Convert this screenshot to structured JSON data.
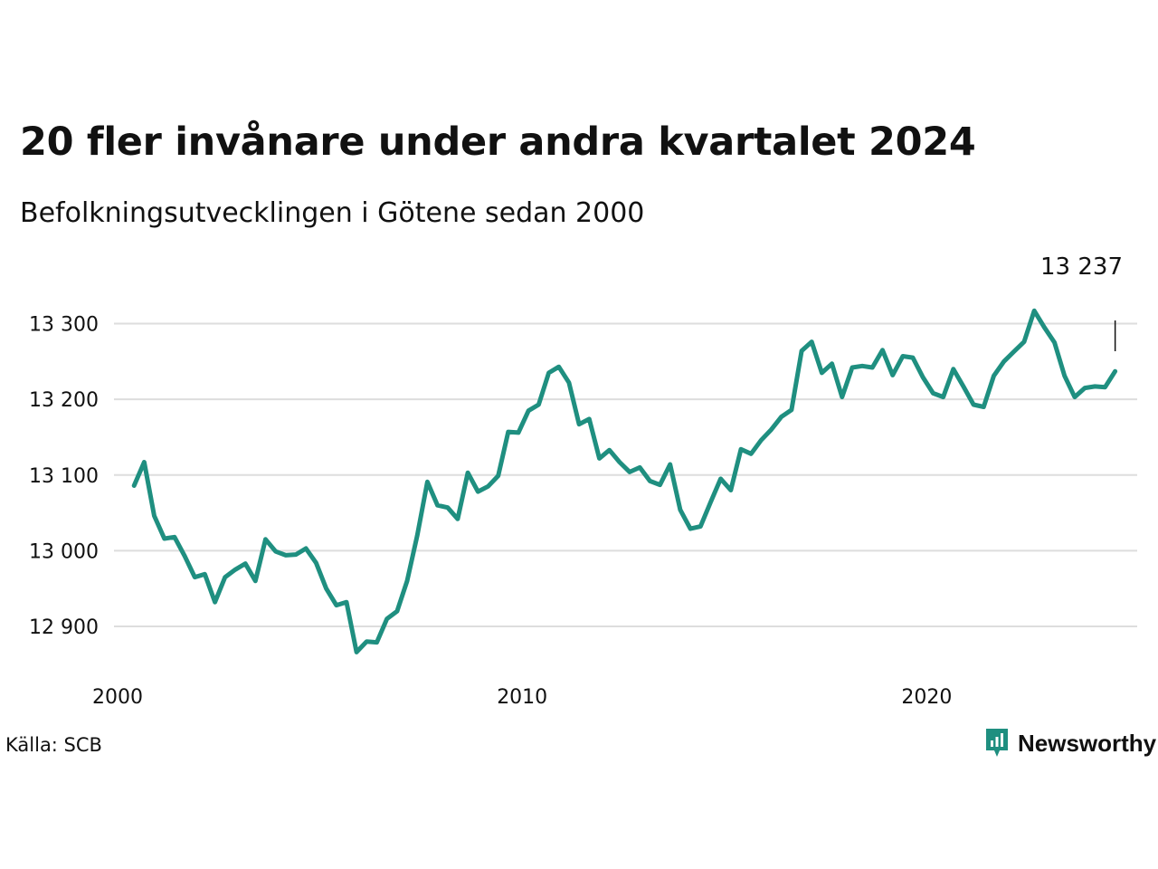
{
  "title": "20 fler invånare under andra kvartalet 2024",
  "subtitle": "Befolkningsutvecklingen i Götene sedan 2000",
  "source": "Källa: SCB",
  "brand": {
    "name": "Newsworthy",
    "icon": "bar-chart-pin-icon",
    "color": "#1f8f80"
  },
  "colors": {
    "line": "#1f8f80",
    "grid": "#dddddd",
    "text": "#111111"
  },
  "chart_data": {
    "type": "line",
    "x_ticks": [
      2000,
      2010,
      2020
    ],
    "y_ticks": [
      12900,
      13000,
      13100,
      13200,
      13300
    ],
    "y_tick_labels": [
      "12 900",
      "13 000",
      "13 100",
      "13 200",
      "13 300"
    ],
    "x_range": [
      2000,
      2025
    ],
    "y_range": [
      12845,
      13345
    ],
    "grid": "horizontal",
    "last_label": "13 237",
    "series": [
      {
        "start": 2000.25,
        "step": 0.25,
        "values": [
          13086,
          13117,
          13046,
          13016,
          13018,
          12993,
          12965,
          12969,
          12932,
          12965,
          12975,
          12983,
          12960,
          13015,
          12999,
          12994,
          12995,
          13003,
          12984,
          12950,
          12928,
          12932,
          12866,
          12880,
          12879,
          12910,
          12920,
          12960,
          13020,
          13091,
          13060,
          13057,
          13042,
          13103,
          13078,
          13085,
          13099,
          13157,
          13156,
          13185,
          13193,
          13235,
          13243,
          13222,
          13167,
          13174,
          13122,
          13133,
          13117,
          13104,
          13110,
          13092,
          13087,
          13114,
          13054,
          13029,
          13032,
          13064,
          13095,
          13080,
          13134,
          13128,
          13146,
          13160,
          13177,
          13186,
          13264,
          13276,
          13235,
          13247,
          13203,
          13242,
          13244,
          13242,
          13265,
          13232,
          13257,
          13255,
          13229,
          13208,
          13203,
          13240,
          13217,
          13193,
          13190,
          13231,
          13250,
          13263,
          13276,
          13317,
          13295,
          13275,
          13231,
          13203,
          13215,
          13217,
          13216,
          13237
        ]
      }
    ]
  }
}
